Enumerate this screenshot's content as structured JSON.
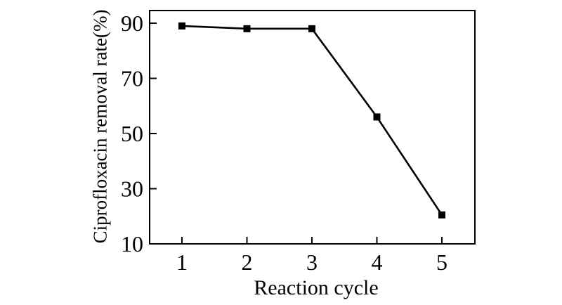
{
  "chart_data": {
    "type": "line",
    "title": "",
    "xlabel": "Reaction cycle",
    "ylabel": "Ciprofloxacin removal rate(%)",
    "x": [
      1,
      2,
      3,
      4,
      5
    ],
    "series": [
      {
        "name": "Ciprofloxacin removal rate",
        "values": [
          89,
          88,
          88,
          56,
          20.5
        ]
      }
    ],
    "x_ticks": [
      1,
      2,
      3,
      4,
      5
    ],
    "y_ticks": [
      10,
      30,
      50,
      70,
      90
    ],
    "xlim": [
      0.5,
      5.5
    ],
    "ylim": [
      10,
      95
    ],
    "grid": false,
    "legend_position": "none",
    "marker": "filled-square",
    "frame": "full-box",
    "tick_direction": "in",
    "line_color": "#000000",
    "marker_color": "#000000",
    "axis_color": "#000000",
    "text_color": "#000000",
    "background_color": "#ffffff"
  }
}
